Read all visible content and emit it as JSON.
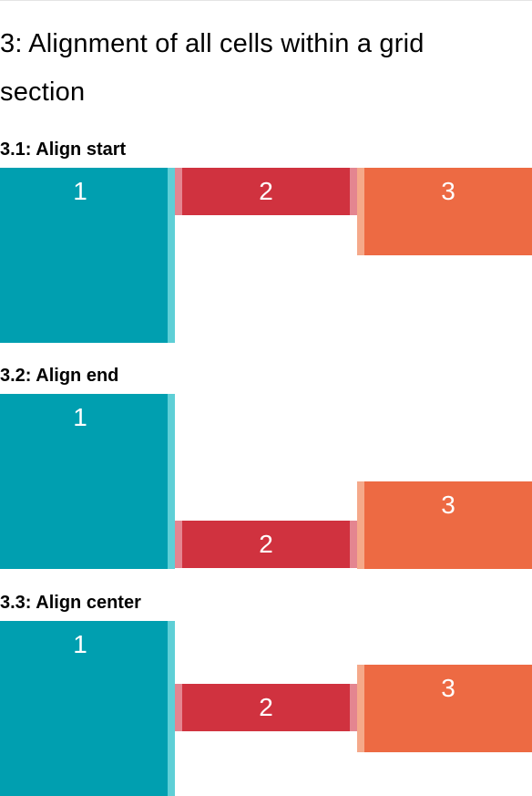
{
  "page": {
    "title_line1": "3: Alignment of all cells within a grid",
    "title_line2": "section"
  },
  "sections": [
    {
      "heading": "3.1: Align start",
      "cells": [
        {
          "label": "1",
          "color": "#009fb0"
        },
        {
          "label": "2",
          "color": "#d0323f"
        },
        {
          "label": "3",
          "color": "#ed6a43"
        }
      ]
    },
    {
      "heading": "3.2: Align end",
      "cells": [
        {
          "label": "1",
          "color": "#009fb0"
        },
        {
          "label": "2",
          "color": "#d0323f"
        },
        {
          "label": "3",
          "color": "#ed6a43"
        }
      ]
    },
    {
      "heading": "3.3: Align center",
      "cells": [
        {
          "label": "1",
          "color": "#009fb0"
        },
        {
          "label": "2",
          "color": "#d0323f"
        },
        {
          "label": "3",
          "color": "#ed6a43"
        }
      ]
    }
  ]
}
